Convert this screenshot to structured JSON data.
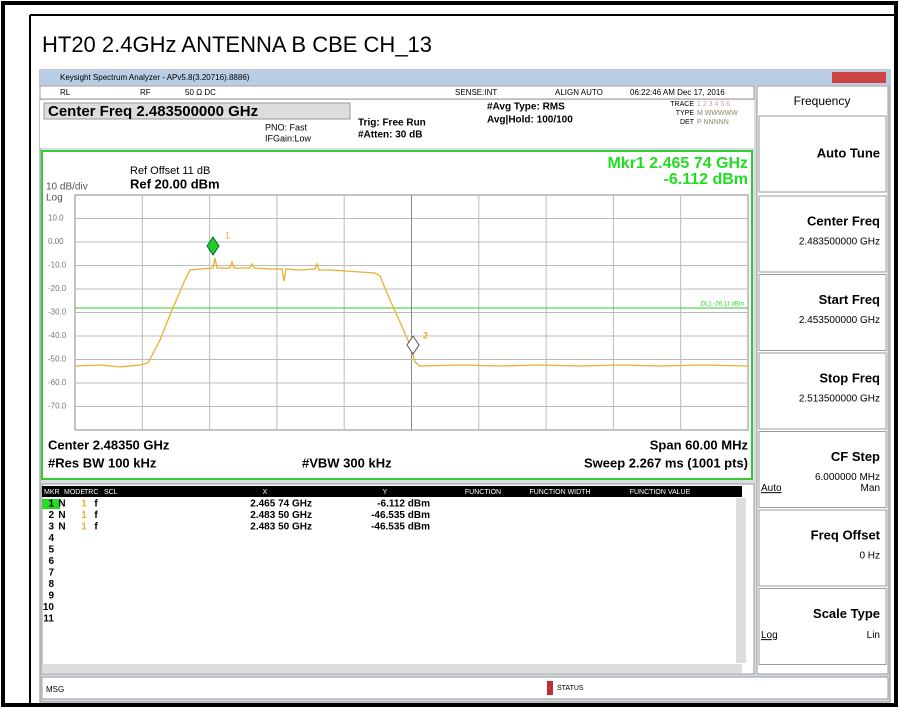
{
  "title": "HT20 2.4GHz ANTENNA B CBE CH_13",
  "window_title": "Keysight Spectrum Analyzer - APv5.8(3.20716).8886)",
  "toolbar": {
    "rl": "RL",
    "rf": "RF",
    "coupling": "50 Ω  DC",
    "sense": "SENSE:INT",
    "align": "ALIGN AUTO",
    "datetime": "06:22:46 AM Dec 17, 2016"
  },
  "header": {
    "center_freq": "Center Freq 2.483500000 GHz",
    "pno": "PNO: Fast",
    "ifgain": "IFGain:Low",
    "trig": "Trig: Free Run",
    "atten": "#Atten: 30 dB",
    "avg_type": "#Avg Type: RMS",
    "avg_hold": "Avg|Hold: 100/100",
    "trace": "TRACE",
    "trace_nums": "1 2 3 4 5 6",
    "type": "TYPE",
    "type_vals": "M WWWWW",
    "det": "DET",
    "det_vals": "P NNNNN"
  },
  "plot": {
    "ref_offset": "Ref Offset 11 dB",
    "ref_level": "Ref 20.00 dBm",
    "scale": "10 dB/div",
    "log": "Log",
    "marker_freq": "Mkr1 2.465 74 GHz",
    "marker_level": "-6.112 dBm",
    "y_labels": [
      "10.0",
      "0.00",
      "-10.0",
      "-20.0",
      "-30.0",
      "-40.0",
      "-50.0",
      "-60.0",
      "-70.0"
    ],
    "display_line": "DL1 -26.11 dBm",
    "marker_labels": [
      "1",
      "2"
    ]
  },
  "footer": {
    "center": "Center 2.48350 GHz",
    "span": "Span 60.00 MHz",
    "rbw": "#Res BW 100 kHz",
    "vbw": "#VBW 300 kHz",
    "sweep": "Sweep  2.267 ms (1001 pts)"
  },
  "marker_table": {
    "columns": [
      "MKR",
      "MODE",
      "TRC",
      "SCL",
      "X",
      "Y",
      "FUNCTION",
      "FUNCTION WIDTH",
      "FUNCTION VALUE"
    ],
    "rows": [
      [
        "1",
        "N",
        "1",
        "f",
        "2.465 74 GHz",
        "-6.112 dBm"
      ],
      [
        "2",
        "N",
        "1",
        "f",
        "2.483 50 GHz",
        "-46.535 dBm"
      ],
      [
        "3",
        "N",
        "1",
        "f",
        "2.483 50 GHz",
        "-46.535 dBm"
      ],
      [
        "4"
      ],
      [
        "5"
      ],
      [
        "6"
      ],
      [
        "7"
      ],
      [
        "8"
      ],
      [
        "9"
      ],
      [
        "10"
      ],
      [
        "11"
      ]
    ]
  },
  "menu": {
    "title": "Frequency",
    "items": [
      {
        "label": "Auto Tune"
      },
      {
        "label": "Center Freq",
        "value": "2.483500000 GHz"
      },
      {
        "label": "Start Freq",
        "value": "2.453500000 GHz"
      },
      {
        "label": "Stop Freq",
        "value": "2.513500000 GHz"
      },
      {
        "label": "CF Step",
        "value": "6.000000 MHz",
        "left": "Auto",
        "right": "Man"
      },
      {
        "label": "Freq Offset",
        "value": "0 Hz"
      },
      {
        "label": "Scale Type",
        "left": "Log",
        "right": "Lin"
      }
    ]
  },
  "status": {
    "msg": "MSG",
    "status": "STATUS"
  }
}
